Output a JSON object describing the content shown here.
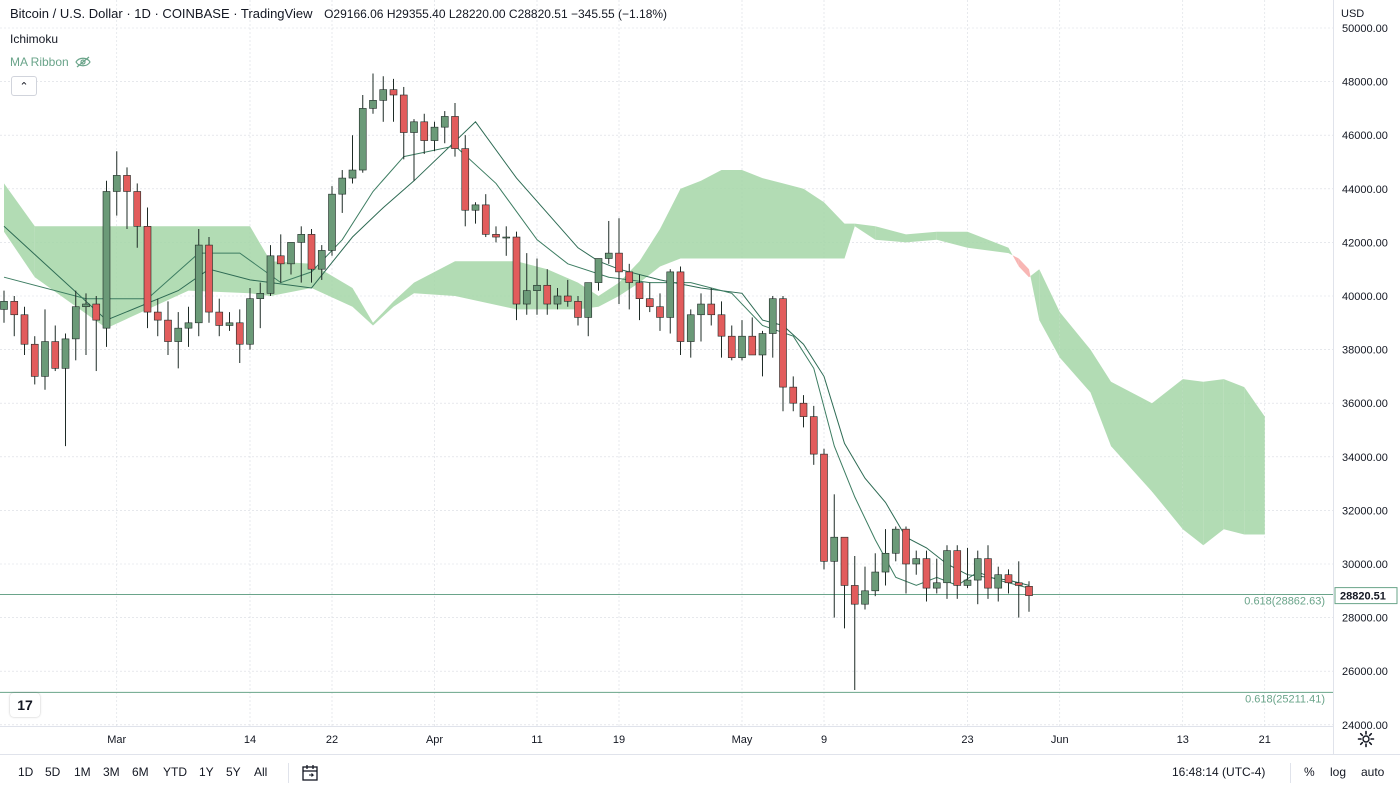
{
  "legend": {
    "title": "Bitcoin / U.S. Dollar · 1D · COINBASE · TradingView",
    "ohlc": "O29166.06 H29355.40 L28220.00 C28820.51 −345.55 (−1.18%)"
  },
  "indicators": {
    "ichimoku": "Ichimoku",
    "ma_ribbon": "MA Ribbon"
  },
  "currency": "USD",
  "bottom_bar": {
    "ranges": [
      "1D",
      "5D",
      "1M",
      "3M",
      "6M",
      "YTD",
      "1Y",
      "5Y",
      "All"
    ],
    "time": "16:48:14 (UTC-4)",
    "percent": "%",
    "log": "log",
    "auto": "auto"
  },
  "chart_data": {
    "type": "candlestick",
    "instrument": "BTCUSD",
    "interval": "1D",
    "exchange": "COINBASE",
    "y_range": [
      24000,
      50000
    ],
    "price_ticks": [
      "50000.00",
      "48000.00",
      "46000.00",
      "44000.00",
      "42000.00",
      "40000.00",
      "38000.00",
      "36000.00",
      "34000.00",
      "32000.00",
      "30000.00",
      "28000.00",
      "26000.00",
      "24000.00"
    ],
    "x_ticks": [
      {
        "label": "Mar",
        "i": 11
      },
      {
        "label": "14",
        "i": 24
      },
      {
        "label": "22",
        "i": 32
      },
      {
        "label": "Apr",
        "i": 42
      },
      {
        "label": "11",
        "i": 52
      },
      {
        "label": "19",
        "i": 60
      },
      {
        "label": "May",
        "i": 72
      },
      {
        "label": "9",
        "i": 80
      },
      {
        "label": "23",
        "i": 94
      },
      {
        "label": "Jun",
        "i": 103
      },
      {
        "label": "13",
        "i": 115
      },
      {
        "label": "21",
        "i": 123
      }
    ],
    "candles": [
      [
        39500,
        40200,
        39000,
        39800
      ],
      [
        39800,
        40000,
        38500,
        39300
      ],
      [
        39300,
        39600,
        37800,
        38200
      ],
      [
        38200,
        38500,
        36700,
        37000
      ],
      [
        37000,
        39500,
        36500,
        38300
      ],
      [
        38300,
        38900,
        37200,
        37300
      ],
      [
        37300,
        38600,
        34400,
        38400
      ],
      [
        38400,
        40200,
        37600,
        39600
      ],
      [
        39600,
        40100,
        37800,
        39700
      ],
      [
        39700,
        40000,
        37200,
        39100
      ],
      [
        38800,
        44300,
        38100,
        43900
      ],
      [
        43900,
        45400,
        43000,
        44500
      ],
      [
        44500,
        44800,
        42500,
        43900
      ],
      [
        43900,
        44200,
        41800,
        42600
      ],
      [
        42600,
        43300,
        38800,
        39400
      ],
      [
        39400,
        39900,
        38500,
        39100
      ],
      [
        39100,
        39800,
        37800,
        38300
      ],
      [
        38300,
        39400,
        37300,
        38800
      ],
      [
        38800,
        39600,
        38100,
        39000
      ],
      [
        39000,
        42500,
        38500,
        41900
      ],
      [
        41900,
        42200,
        39000,
        39400
      ],
      [
        39400,
        39900,
        38500,
        38900
      ],
      [
        38900,
        39400,
        38700,
        39000
      ],
      [
        39000,
        39500,
        37500,
        38200
      ],
      [
        38200,
        40300,
        38000,
        39900
      ],
      [
        39900,
        40500,
        38800,
        40100
      ],
      [
        40100,
        41900,
        40000,
        41500
      ],
      [
        41500,
        42300,
        40500,
        41200
      ],
      [
        41200,
        42000,
        40800,
        42000
      ],
      [
        42000,
        42600,
        40500,
        42300
      ],
      [
        42300,
        42500,
        40500,
        41000
      ],
      [
        41000,
        41900,
        40600,
        41700
      ],
      [
        41700,
        44100,
        41500,
        43800
      ],
      [
        43800,
        44700,
        43100,
        44400
      ],
      [
        44400,
        46000,
        44200,
        44700
      ],
      [
        44700,
        47500,
        44600,
        47000
      ],
      [
        47000,
        48300,
        46800,
        47300
      ],
      [
        47300,
        48200,
        46500,
        47700
      ],
      [
        47700,
        48100,
        46500,
        47500
      ],
      [
        47500,
        47800,
        45100,
        46100
      ],
      [
        46100,
        46600,
        44300,
        46500
      ],
      [
        46500,
        46800,
        45300,
        45800
      ],
      [
        45800,
        46500,
        45400,
        46300
      ],
      [
        46300,
        46900,
        45700,
        46700
      ],
      [
        46700,
        47200,
        45200,
        45500
      ],
      [
        45500,
        46000,
        42600,
        43200
      ],
      [
        43200,
        43500,
        42700,
        43400
      ],
      [
        43400,
        43800,
        42200,
        42300
      ],
      [
        42300,
        42600,
        42000,
        42200
      ],
      [
        42200,
        42600,
        41500,
        42200
      ],
      [
        42200,
        42400,
        39100,
        39700
      ],
      [
        39700,
        41600,
        39300,
        40200
      ],
      [
        40200,
        41400,
        39300,
        40400
      ],
      [
        40400,
        41000,
        39300,
        39700
      ],
      [
        39700,
        40300,
        39500,
        40000
      ],
      [
        40000,
        40600,
        39600,
        39800
      ],
      [
        39800,
        40000,
        38900,
        39200
      ],
      [
        39200,
        40400,
        38500,
        40500
      ],
      [
        40500,
        41400,
        40200,
        41400
      ],
      [
        41400,
        42800,
        41200,
        41600
      ],
      [
        41600,
        42900,
        39700,
        40900
      ],
      [
        40900,
        41200,
        39500,
        40500
      ],
      [
        40500,
        40800,
        39100,
        39900
      ],
      [
        39900,
        40500,
        39400,
        39600
      ],
      [
        39600,
        40100,
        38700,
        39200
      ],
      [
        39200,
        41000,
        38600,
        40900
      ],
      [
        40900,
        41100,
        37800,
        38300
      ],
      [
        38300,
        39500,
        37700,
        39300
      ],
      [
        39300,
        40100,
        38300,
        39700
      ],
      [
        39700,
        40300,
        38900,
        39300
      ],
      [
        39300,
        39800,
        37700,
        38500
      ],
      [
        38500,
        38900,
        37600,
        37700
      ],
      [
        37700,
        39100,
        37600,
        38500
      ],
      [
        38500,
        39200,
        37800,
        37800
      ],
      [
        37800,
        38700,
        37000,
        38600
      ],
      [
        38600,
        40000,
        37700,
        39900
      ],
      [
        39900,
        40000,
        35700,
        36600
      ],
      [
        36600,
        37000,
        35700,
        36000
      ],
      [
        36000,
        36300,
        35100,
        35500
      ],
      [
        35500,
        35900,
        33700,
        34100
      ],
      [
        34100,
        34300,
        29800,
        30100
      ],
      [
        30100,
        32600,
        28000,
        31000
      ],
      [
        31000,
        31000,
        27600,
        29200
      ],
      [
        29200,
        30300,
        25300,
        28500
      ],
      [
        28500,
        29900,
        28300,
        29000
      ],
      [
        29000,
        30400,
        28800,
        29700
      ],
      [
        29700,
        31300,
        29200,
        30400
      ],
      [
        30400,
        31400,
        30100,
        31300
      ],
      [
        31300,
        31400,
        28900,
        30000
      ],
      [
        30000,
        30500,
        29600,
        30200
      ],
      [
        30200,
        30500,
        28600,
        29100
      ],
      [
        29100,
        30200,
        28900,
        29300
      ],
      [
        29300,
        30700,
        28700,
        30500
      ],
      [
        30500,
        30700,
        28700,
        29200
      ],
      [
        29200,
        30600,
        29100,
        29400
      ],
      [
        29400,
        30500,
        28500,
        30200
      ],
      [
        30200,
        30700,
        28700,
        29100
      ],
      [
        29100,
        29900,
        28600,
        29600
      ],
      [
        29600,
        29800,
        28900,
        29300
      ],
      [
        29300,
        30100,
        28000,
        29200
      ],
      [
        29166,
        29355,
        28220,
        28820
      ]
    ],
    "base_line": [
      [
        0,
        42600
      ],
      [
        10,
        39100
      ],
      [
        17,
        40200
      ],
      [
        20,
        41000
      ],
      [
        24,
        40600
      ],
      [
        30,
        40300
      ],
      [
        34,
        42200
      ],
      [
        37,
        43300
      ],
      [
        40,
        44300
      ],
      [
        46,
        46500
      ],
      [
        50,
        44400
      ],
      [
        56,
        41800
      ],
      [
        58,
        41300
      ],
      [
        60,
        41000
      ],
      [
        64,
        40600
      ],
      [
        68,
        40300
      ],
      [
        72,
        40100
      ],
      [
        74,
        39100
      ],
      [
        76,
        38900
      ],
      [
        78,
        38200
      ],
      [
        80,
        37000
      ],
      [
        82,
        34500
      ],
      [
        84,
        33200
      ],
      [
        86,
        32300
      ],
      [
        88,
        31000
      ],
      [
        90,
        30600
      ],
      [
        92,
        30000
      ],
      [
        94,
        29600
      ],
      [
        96,
        29500
      ],
      [
        98,
        29400
      ],
      [
        100,
        29200
      ]
    ],
    "conversion_line": [
      [
        0,
        40700
      ],
      [
        8,
        39900
      ],
      [
        14,
        39900
      ],
      [
        19,
        41600
      ],
      [
        23,
        41600
      ],
      [
        27,
        40500
      ],
      [
        30,
        40900
      ],
      [
        33,
        42100
      ],
      [
        36,
        43900
      ],
      [
        39,
        45200
      ],
      [
        44,
        45600
      ],
      [
        48,
        44200
      ],
      [
        52,
        42100
      ],
      [
        55,
        41200
      ],
      [
        59,
        40700
      ],
      [
        63,
        40500
      ],
      [
        67,
        40500
      ],
      [
        71,
        40100
      ],
      [
        74,
        38900
      ],
      [
        77,
        38500
      ],
      [
        79,
        37300
      ],
      [
        81,
        34400
      ],
      [
        83,
        32500
      ],
      [
        85,
        30900
      ],
      [
        87,
        29500
      ],
      [
        89,
        29200
      ],
      [
        91,
        29500
      ],
      [
        93,
        29200
      ],
      [
        95,
        29700
      ],
      [
        97,
        29400
      ],
      [
        100,
        29100
      ]
    ],
    "cloud": {
      "span_a": [
        [
          0,
          44200
        ],
        [
          3,
          42600
        ],
        [
          10,
          42600
        ],
        [
          18,
          42600
        ],
        [
          24,
          42600
        ],
        [
          26,
          41300
        ],
        [
          30,
          41200
        ],
        [
          34,
          40300
        ],
        [
          36,
          39000
        ],
        [
          38,
          39800
        ],
        [
          40,
          40500
        ],
        [
          44,
          41300
        ],
        [
          50,
          41300
        ],
        [
          53,
          41000
        ],
        [
          56,
          40500
        ],
        [
          58,
          40000
        ],
        [
          60,
          40500
        ],
        [
          62,
          41300
        ],
        [
          64,
          42500
        ],
        [
          66,
          44000
        ],
        [
          68,
          44300
        ],
        [
          70,
          44700
        ],
        [
          72,
          44700
        ],
        [
          74,
          44400
        ],
        [
          76,
          44200
        ],
        [
          78,
          44000
        ],
        [
          80,
          43500
        ],
        [
          82,
          42700
        ],
        [
          83,
          42700
        ],
        [
          85,
          42600
        ],
        [
          88,
          42300
        ],
        [
          91,
          42400
        ],
        [
          94,
          42400
        ],
        [
          98,
          41800
        ],
        [
          99,
          41100
        ],
        [
          100,
          40700
        ],
        [
          101,
          41000
        ],
        [
          103,
          39400
        ],
        [
          106,
          38000
        ],
        [
          108,
          36800
        ],
        [
          112,
          36000
        ],
        [
          115,
          36900
        ],
        [
          117,
          36800
        ],
        [
          119,
          36900
        ],
        [
          121,
          36600
        ],
        [
          123,
          35500
        ]
      ],
      "span_b": [
        [
          0,
          42400
        ],
        [
          3,
          40700
        ],
        [
          10,
          38800
        ],
        [
          18,
          40200
        ],
        [
          24,
          40100
        ],
        [
          26,
          40000
        ],
        [
          30,
          40300
        ],
        [
          34,
          39600
        ],
        [
          36,
          38900
        ],
        [
          38,
          39600
        ],
        [
          40,
          40100
        ],
        [
          44,
          40000
        ],
        [
          50,
          39500
        ],
        [
          53,
          39500
        ],
        [
          56,
          39500
        ],
        [
          58,
          39600
        ],
        [
          60,
          40000
        ],
        [
          62,
          40500
        ],
        [
          64,
          41100
        ],
        [
          66,
          41400
        ],
        [
          68,
          41400
        ],
        [
          70,
          41400
        ],
        [
          72,
          41400
        ],
        [
          74,
          41400
        ],
        [
          76,
          41400
        ],
        [
          78,
          41400
        ],
        [
          80,
          41400
        ],
        [
          82,
          41400
        ],
        [
          83,
          42600
        ],
        [
          85,
          42100
        ],
        [
          88,
          42000
        ],
        [
          91,
          42100
        ],
        [
          94,
          41800
        ],
        [
          98,
          41600
        ],
        [
          99,
          41400
        ],
        [
          100,
          41000
        ],
        [
          101,
          39100
        ],
        [
          103,
          37700
        ],
        [
          106,
          36400
        ],
        [
          108,
          34400
        ],
        [
          112,
          32700
        ],
        [
          115,
          31300
        ],
        [
          117,
          30700
        ],
        [
          119,
          31300
        ],
        [
          121,
          31100
        ],
        [
          123,
          31100
        ]
      ],
      "bull_color": "#a5d6a7",
      "bear_color": "#f7a9a7"
    },
    "horizontal_levels": [
      {
        "label": "0.618(28862.63)",
        "value": 28862.63,
        "color": "#6aa48a"
      },
      {
        "label": "0.618(25211.41)",
        "value": 25211.41,
        "color": "#6aa48a"
      }
    ],
    "last_price": {
      "label": "28820.51",
      "value": 28820.51,
      "color": "#ef5350"
    },
    "colors": {
      "up": "#2e7d32",
      "up_body": "#6b9a78",
      "down": "#e25c5c",
      "grid": "#d8dbe2",
      "line": "#2e6b54"
    }
  }
}
